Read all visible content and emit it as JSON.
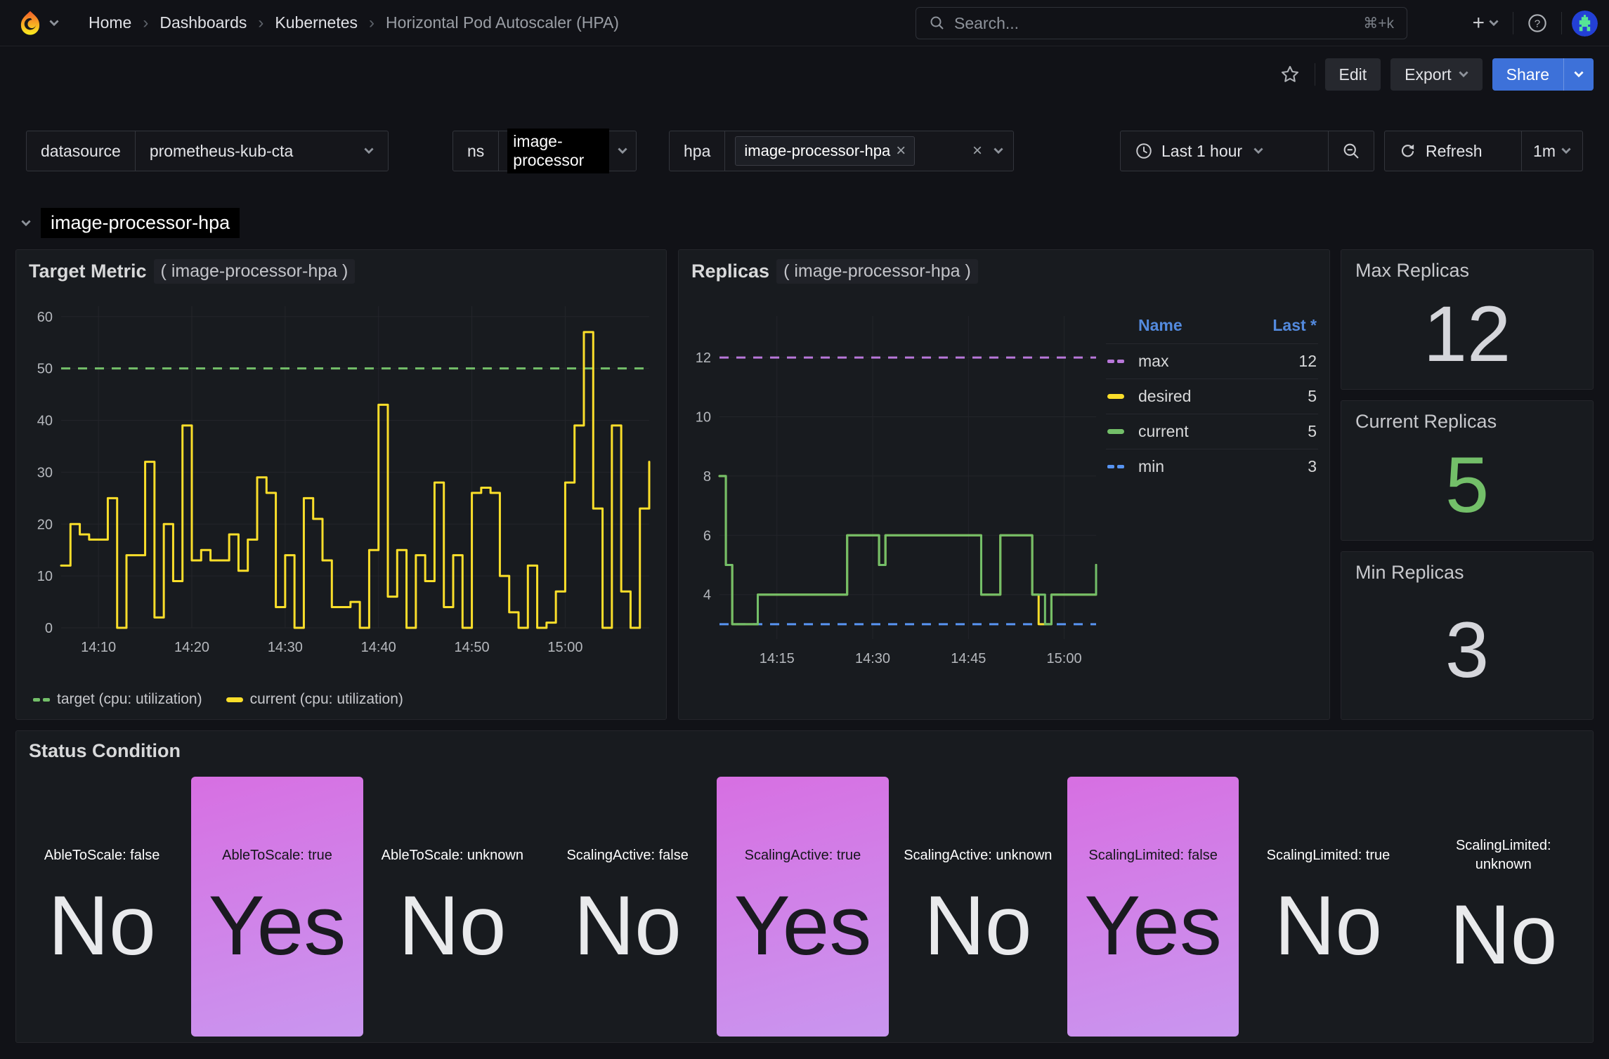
{
  "nav": {
    "breadcrumbs": [
      "Home",
      "Dashboards",
      "Kubernetes",
      "Horizontal Pod Autoscaler (HPA)"
    ],
    "search": {
      "placeholder": "Search...",
      "shortcut": "⌘+k"
    }
  },
  "toolbar": {
    "edit_label": "Edit",
    "export_label": "Export",
    "share_label": "Share"
  },
  "filters": {
    "datasource_label": "datasource",
    "datasource_value": "prometheus-kub-cta",
    "ns_label": "ns",
    "ns_value": "image-processor",
    "hpa_label": "hpa",
    "hpa_chip": "image-processor-hpa",
    "time_range": "Last 1 hour",
    "refresh_label": "Refresh",
    "refresh_interval": "1m"
  },
  "row": {
    "title": "image-processor-hpa"
  },
  "panels": {
    "target_metric": {
      "title": "Target Metric",
      "subtitle": "( image-processor-hpa )"
    },
    "replicas": {
      "title": "Replicas",
      "subtitle": "( image-processor-hpa )",
      "table": {
        "name_header": "Name",
        "last_header": "Last *",
        "rows": [
          {
            "name": "max",
            "last": "12",
            "swatch": "dash",
            "color": "#B877D9"
          },
          {
            "name": "desired",
            "last": "5",
            "swatch": "line",
            "color": "#FADE2A"
          },
          {
            "name": "current",
            "last": "5",
            "swatch": "line",
            "color": "#73BF69"
          },
          {
            "name": "min",
            "last": "3",
            "swatch": "dash",
            "color": "#5794F2"
          }
        ]
      }
    },
    "max_replicas": {
      "title": "Max Replicas",
      "value": "12",
      "color": "#d5d6db"
    },
    "current_replicas": {
      "title": "Current Replicas",
      "value": "5",
      "color": "#73BF69"
    },
    "min_replicas": {
      "title": "Min Replicas",
      "value": "3",
      "color": "#d5d6db"
    },
    "status_condition": {
      "title": "Status Condition",
      "tiles": [
        {
          "label": "AbleToScale: false",
          "value": "No",
          "highlight": false
        },
        {
          "label": "AbleToScale: true",
          "value": "Yes",
          "highlight": true
        },
        {
          "label": "AbleToScale: unknown",
          "value": "No",
          "highlight": false
        },
        {
          "label": "ScalingActive: false",
          "value": "No",
          "highlight": false
        },
        {
          "label": "ScalingActive: true",
          "value": "Yes",
          "highlight": true
        },
        {
          "label": "ScalingActive: unknown",
          "value": "No",
          "highlight": false
        },
        {
          "label": "ScalingLimited: false",
          "value": "Yes",
          "highlight": true
        },
        {
          "label": "ScalingLimited: true",
          "value": "No",
          "highlight": false
        },
        {
          "label": "ScalingLimited:\nunknown",
          "value": "No",
          "highlight": false
        }
      ]
    }
  },
  "colors": {
    "yellow": "#FADE2A",
    "green": "#73BF69",
    "purple": "#B877D9",
    "blue": "#5794F2",
    "share_blue": "#3D71D9",
    "tile_gradient_top": "#d76fe2",
    "tile_gradient_bottom": "#c996ef"
  },
  "chart_data": [
    {
      "type": "line",
      "title": "Target Metric ( image-processor-hpa )",
      "x_start": "14:06",
      "x_step_minutes": 1,
      "ylim": [
        0,
        62
      ],
      "y_ticks": [
        0,
        10,
        20,
        30,
        40,
        50,
        60
      ],
      "x_ticks": [
        {
          "m": 4,
          "label": "14:10"
        },
        {
          "m": 14,
          "label": "14:20"
        },
        {
          "m": 24,
          "label": "14:30"
        },
        {
          "m": 34,
          "label": "14:40"
        },
        {
          "m": 44,
          "label": "14:50"
        },
        {
          "m": 54,
          "label": "15:00"
        }
      ],
      "grid": true,
      "legend_position": "bottom",
      "series": [
        {
          "name": "target (cpu: utilization)",
          "color": "#73BF69",
          "style": "dashed",
          "const": 50
        },
        {
          "name": "current (cpu: utilization)",
          "color": "#FADE2A",
          "style": "step",
          "values": [
            12,
            20,
            18,
            17,
            17,
            25,
            0,
            14,
            14,
            32,
            2,
            20,
            9,
            39,
            13,
            15,
            13,
            13,
            18,
            11,
            17,
            29,
            26,
            4,
            14,
            0,
            25,
            21,
            13,
            4,
            4,
            5,
            0,
            15,
            43,
            6,
            15,
            0,
            14,
            9,
            28,
            4,
            14,
            0,
            26,
            27,
            26,
            10,
            3,
            0,
            12,
            0,
            1,
            7,
            28,
            39,
            57,
            23,
            0,
            39,
            7,
            0,
            23,
            32
          ]
        }
      ]
    },
    {
      "type": "line",
      "title": "Replicas ( image-processor-hpa )",
      "x_start": "14:06",
      "x_step_minutes": 1,
      "ylim": [
        2.5,
        13.4
      ],
      "y_ticks": [
        4,
        6,
        8,
        10,
        12
      ],
      "x_ticks": [
        {
          "m": 9,
          "label": "14:15"
        },
        {
          "m": 24,
          "label": "14:30"
        },
        {
          "m": 39,
          "label": "14:45"
        },
        {
          "m": 54,
          "label": "15:00"
        }
      ],
      "grid": true,
      "legend_position": "right-table",
      "series": [
        {
          "name": "max",
          "color": "#B877D9",
          "style": "dashed",
          "const": 12,
          "last": 12
        },
        {
          "name": "desired",
          "color": "#FADE2A",
          "style": "step",
          "last": 5,
          "values": [
            8,
            5,
            3,
            3,
            3,
            3,
            4,
            4,
            4,
            4,
            4,
            4,
            4,
            4,
            4,
            4,
            4,
            4,
            4,
            4,
            6,
            6,
            6,
            6,
            6,
            5,
            6,
            6,
            6,
            6,
            6,
            6,
            6,
            6,
            6,
            6,
            6,
            6,
            6,
            6,
            6,
            4,
            4,
            4,
            6,
            6,
            6,
            6,
            6,
            4,
            3,
            3,
            4,
            4,
            4,
            4,
            4,
            4,
            4,
            5
          ]
        },
        {
          "name": "current",
          "color": "#73BF69",
          "style": "step",
          "last": 5,
          "values": [
            8,
            5,
            3,
            3,
            3,
            3,
            4,
            4,
            4,
            4,
            4,
            4,
            4,
            4,
            4,
            4,
            4,
            4,
            4,
            4,
            6,
            6,
            6,
            6,
            6,
            5,
            6,
            6,
            6,
            6,
            6,
            6,
            6,
            6,
            6,
            6,
            6,
            6,
            6,
            6,
            6,
            4,
            4,
            4,
            6,
            6,
            6,
            6,
            6,
            4,
            4,
            3,
            4,
            4,
            4,
            4,
            4,
            4,
            4,
            5
          ]
        },
        {
          "name": "min",
          "color": "#5794F2",
          "style": "dashed",
          "const": 3,
          "last": 3
        }
      ]
    }
  ]
}
